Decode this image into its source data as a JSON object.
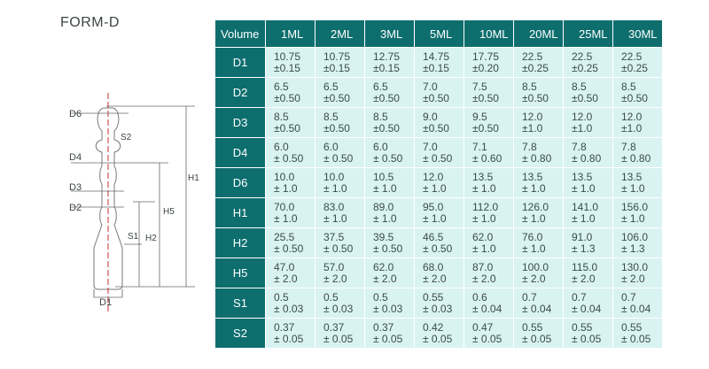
{
  "title": "FORM-D",
  "diagram": {
    "labels": {
      "d6": "D6",
      "s2": "S2",
      "d4": "D4",
      "d3": "D3",
      "d2": "D2",
      "s1": "S1",
      "h2": "H2",
      "h5": "H5",
      "h1": "H1",
      "d1": "D1"
    },
    "colors": {
      "outline": "#7a7a7a",
      "centerline": "#c0302a",
      "dims": "#666666"
    }
  },
  "table": {
    "corner": "Volume",
    "columns": [
      "1ML",
      "2ML",
      "3ML",
      "5ML",
      "10ML",
      "20ML",
      "25ML",
      "30ML"
    ],
    "rows": [
      {
        "label": "D1",
        "cells": [
          [
            "10.75",
            "±0.15"
          ],
          [
            "10.75",
            "±0.15"
          ],
          [
            "12.75",
            "±0.15"
          ],
          [
            "14.75",
            "±0.15"
          ],
          [
            "17.75",
            "±0.20"
          ],
          [
            "22.5",
            "±0.25"
          ],
          [
            "22.5",
            "±0.25"
          ],
          [
            "22.5",
            "±0.25"
          ]
        ]
      },
      {
        "label": "D2",
        "cells": [
          [
            "6.5",
            "±0.50"
          ],
          [
            "6.5",
            "±0.50"
          ],
          [
            "6.5",
            "±0.50"
          ],
          [
            "7.0",
            "±0.50"
          ],
          [
            "7.5",
            "±0.50"
          ],
          [
            "8.5",
            "±0.50"
          ],
          [
            "8.5",
            "±0.50"
          ],
          [
            "8.5",
            "±0.50"
          ]
        ]
      },
      {
        "label": "D3",
        "cells": [
          [
            "8.5",
            "±0.50"
          ],
          [
            "8.5",
            "±0.50"
          ],
          [
            "8.5",
            "±0.50"
          ],
          [
            "9.0",
            "±0.50"
          ],
          [
            "9.5",
            "±0.50"
          ],
          [
            "12.0",
            "±1.0"
          ],
          [
            "12.0",
            "±1.0"
          ],
          [
            "12.0",
            "±1.0"
          ]
        ]
      },
      {
        "label": "D4",
        "cells": [
          [
            "6.0",
            "± 0.50"
          ],
          [
            "6.0",
            "± 0.50"
          ],
          [
            "6.0",
            "± 0.50"
          ],
          [
            "7.0",
            "± 0.50"
          ],
          [
            "7.1",
            "± 0.60"
          ],
          [
            "7.8",
            "± 0.80"
          ],
          [
            "7.8",
            "± 0.80"
          ],
          [
            "7.8",
            "± 0.80"
          ]
        ]
      },
      {
        "label": "D6",
        "cells": [
          [
            "10.0",
            "± 1.0"
          ],
          [
            "10.0",
            "± 1.0"
          ],
          [
            "10.5",
            "± 1.0"
          ],
          [
            "12.0",
            "± 1.0"
          ],
          [
            "13.5",
            "± 1.0"
          ],
          [
            "13.5",
            "± 1.0"
          ],
          [
            "13.5",
            "± 1.0"
          ],
          [
            "13.5",
            "± 1.0"
          ]
        ]
      },
      {
        "label": "H1",
        "cells": [
          [
            "70.0",
            "± 1.0"
          ],
          [
            "83.0",
            "± 1.0"
          ],
          [
            "89.0",
            "± 1.0"
          ],
          [
            "95.0",
            "± 1.0"
          ],
          [
            "112.0",
            "± 1.0"
          ],
          [
            "126.0",
            "± 1.0"
          ],
          [
            "141.0",
            "± 1.0"
          ],
          [
            "156.0",
            "± 1.0"
          ]
        ]
      },
      {
        "label": "H2",
        "cells": [
          [
            "25.5",
            "± 0.50"
          ],
          [
            "37.5",
            "± 0.50"
          ],
          [
            "39.5",
            "± 0.50"
          ],
          [
            "46.5",
            "± 0.50"
          ],
          [
            "62.0",
            "± 1.0"
          ],
          [
            "76.0",
            "± 1.0"
          ],
          [
            "91.0",
            "± 1.3"
          ],
          [
            "106.0",
            "± 1.3"
          ]
        ]
      },
      {
        "label": "H5",
        "cells": [
          [
            "47.0",
            "± 2.0"
          ],
          [
            "57.0",
            "± 2.0"
          ],
          [
            "62.0",
            "± 2.0"
          ],
          [
            "68.0",
            "± 2.0"
          ],
          [
            "87.0",
            "± 2.0"
          ],
          [
            "100.0",
            "± 2.0"
          ],
          [
            "115.0",
            "± 2.0"
          ],
          [
            "130.0",
            "± 2.0"
          ]
        ]
      },
      {
        "label": "S1",
        "cells": [
          [
            "0.5",
            "± 0.03"
          ],
          [
            "0.5",
            "± 0.03"
          ],
          [
            "0.5",
            "± 0.03"
          ],
          [
            "0.55",
            "± 0.03"
          ],
          [
            "0.6",
            "± 0.04"
          ],
          [
            "0.7",
            "± 0.04"
          ],
          [
            "0.7",
            "± 0.04"
          ],
          [
            "0.7",
            "± 0.04"
          ]
        ]
      },
      {
        "label": "S2",
        "cells": [
          [
            "0.37",
            "± 0.05"
          ],
          [
            "0.37",
            "± 0.05"
          ],
          [
            "0.37",
            "± 0.05"
          ],
          [
            "0.42",
            "± 0.05"
          ],
          [
            "0.47",
            "± 0.05"
          ],
          [
            "0.55",
            "± 0.05"
          ],
          [
            "0.55",
            "± 0.05"
          ],
          [
            "0.55",
            "± 0.05"
          ]
        ]
      }
    ]
  }
}
